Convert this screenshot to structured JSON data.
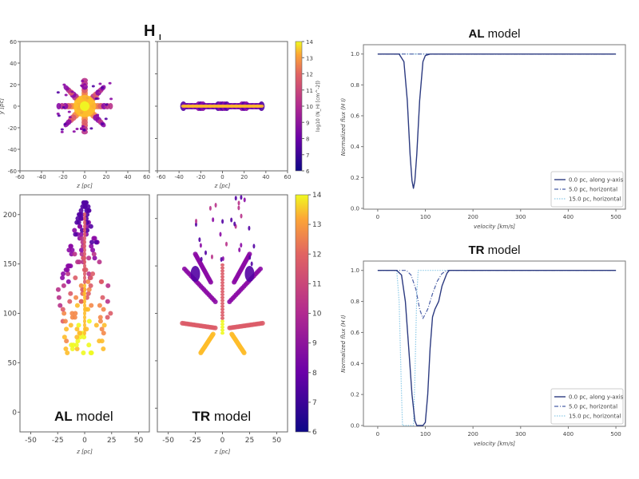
{
  "figure": {
    "title_main": "H",
    "title_sub": "I",
    "al_label_bold": "AL",
    "tr_label_bold": "TR",
    "model_word": "model"
  },
  "colors": {
    "line": "#2c3a80",
    "dashdot": "#4b5fa6",
    "dotted": "#8ecbe8",
    "axis": "#777777"
  },
  "chart_data": [
    {
      "type": "heatmap",
      "panel": "top-left",
      "xlabel": "z [pc]",
      "ylabel": "y [pc]",
      "xlim": [
        -60,
        60
      ],
      "ylim": [
        -60,
        60
      ],
      "xticks": [
        "-60",
        "-40",
        "-20",
        "0",
        "20",
        "40",
        "60"
      ],
      "yticks": [
        "60",
        "40",
        "20",
        "0",
        "-20",
        "-40",
        "-60"
      ],
      "colormap": "plasma"
    },
    {
      "type": "heatmap",
      "panel": "top-right",
      "xlabel": "z [pc]",
      "xlim": [
        -60,
        60
      ],
      "ylim": [
        -60,
        60
      ],
      "xticks": [
        "-60",
        "-40",
        "-20",
        "0",
        "20",
        "40",
        "60"
      ],
      "colormap": "plasma",
      "colorbar": {
        "label": "log10 (N_HI [cm^-2])",
        "range": [
          6,
          14
        ],
        "ticks": [
          "14",
          "13",
          "12",
          "11",
          "10",
          "9",
          "8",
          "7",
          "6"
        ]
      }
    },
    {
      "type": "heatmap",
      "panel": "bottom-left",
      "annotation": "AL model",
      "xlabel": "z [pc]",
      "xlim": [
        -60,
        60
      ],
      "ylim": [
        -20,
        220
      ],
      "xticks": [
        "-50",
        "-25",
        "0",
        "25",
        "50"
      ],
      "yticks": [
        "200",
        "150",
        "100",
        "50",
        "0"
      ],
      "colormap": "plasma"
    },
    {
      "type": "heatmap",
      "panel": "bottom-right",
      "annotation": "TR model",
      "xlabel": "z [pc]",
      "xlim": [
        -60,
        60
      ],
      "ylim": [
        -20,
        220
      ],
      "xticks": [
        "-50",
        "-25",
        "0",
        "25",
        "50"
      ],
      "colormap": "plasma",
      "colorbar": {
        "range": [
          6,
          14
        ],
        "ticks": [
          "14",
          "13",
          "12",
          "11",
          "10",
          "9",
          "8",
          "7",
          "6"
        ]
      }
    },
    {
      "type": "line",
      "title": "AL model",
      "xlabel": "velocity [km/s]",
      "ylabel": "Normalized flux (H I)",
      "xlim": [
        -30,
        520
      ],
      "ylim": [
        0,
        1.05
      ],
      "xticks": [
        "0",
        "100",
        "200",
        "300",
        "400",
        "500"
      ],
      "yticks": [
        "0.0",
        "0.2",
        "0.4",
        "0.6",
        "0.8",
        "1.0"
      ],
      "legend": "bottom-right",
      "series": [
        {
          "name": "0.0 pc, along y-axis",
          "style": "solid",
          "x": [
            0,
            45,
            55,
            62,
            68,
            72,
            75,
            78,
            82,
            88,
            95,
            100,
            110,
            500
          ],
          "y": [
            1,
            1,
            0.95,
            0.7,
            0.35,
            0.18,
            0.13,
            0.18,
            0.35,
            0.7,
            0.95,
            0.99,
            1,
            1
          ]
        },
        {
          "name": "5.0 pc, horizontal",
          "style": "dashdot",
          "x": [
            0,
            500
          ],
          "y": [
            1,
            1
          ]
        },
        {
          "name": "15.0 pc, horizontal",
          "style": "dotted",
          "x": [
            0,
            500
          ],
          "y": [
            1,
            1
          ]
        }
      ]
    },
    {
      "type": "line",
      "title": "TR model",
      "xlabel": "velocity [km/s]",
      "ylabel": "Normalized flux (H I)",
      "xlim": [
        -30,
        520
      ],
      "ylim": [
        0,
        1.05
      ],
      "xticks": [
        "0",
        "100",
        "200",
        "300",
        "400",
        "500"
      ],
      "yticks": [
        "0.0",
        "0.2",
        "0.4",
        "0.6",
        "0.8",
        "1.0"
      ],
      "legend": "bottom-right",
      "series": [
        {
          "name": "0.0 pc, along y-axis",
          "style": "solid",
          "x": [
            0,
            40,
            50,
            58,
            65,
            72,
            78,
            82,
            95,
            100,
            105,
            110,
            115,
            120,
            128,
            135,
            145,
            150,
            500
          ],
          "y": [
            1,
            1,
            0.97,
            0.8,
            0.5,
            0.2,
            0.03,
            0,
            0,
            0.02,
            0.2,
            0.5,
            0.7,
            0.75,
            0.8,
            0.9,
            0.98,
            1,
            1
          ]
        },
        {
          "name": "5.0 pc, horizontal",
          "style": "dashdot",
          "x": [
            0,
            60,
            70,
            80,
            88,
            95,
            105,
            115,
            125,
            135,
            145,
            500
          ],
          "y": [
            1,
            1,
            0.97,
            0.88,
            0.75,
            0.69,
            0.75,
            0.85,
            0.93,
            0.98,
            1,
            1
          ]
        },
        {
          "name": "15.0 pc, horizontal",
          "style": "dotted",
          "x": [
            0,
            40,
            45,
            50,
            52,
            75,
            78,
            82,
            85,
            90,
            500
          ],
          "y": [
            1,
            1,
            0.8,
            0.2,
            0,
            0,
            0.3,
            0.85,
            1,
            1,
            1
          ]
        }
      ]
    }
  ]
}
